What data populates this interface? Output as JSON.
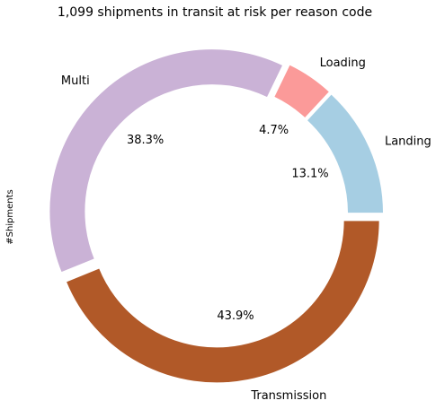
{
  "chart_data": {
    "type": "pie",
    "style": "donut",
    "title": "1,099 shipments in transit at risk per reason code",
    "ylabel": "#Shipments",
    "legend": "none",
    "start_angle_deg": 0,
    "direction": "counterclockwise",
    "slices": [
      {
        "label": "Landing",
        "value": 144,
        "percent": "13.1%",
        "color": "#a6cee3"
      },
      {
        "label": "Loading",
        "value": 52,
        "percent": "4.7%",
        "color": "#fb9a99"
      },
      {
        "label": "Multi",
        "value": 421,
        "percent": "38.3%",
        "color": "#cab2d6"
      },
      {
        "label": "Transmission",
        "value": 482,
        "percent": "43.9%",
        "color": "#b15928"
      }
    ]
  }
}
